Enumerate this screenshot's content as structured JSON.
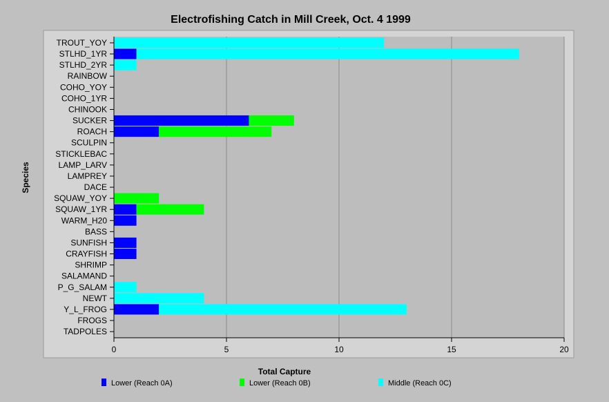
{
  "chart_data": {
    "type": "bar",
    "orientation": "horizontal",
    "stacked": true,
    "title": "Electrofishing Catch in Mill Creek, Oct. 4 1999",
    "xlabel": "Total Capture",
    "ylabel": "Species",
    "xlim": [
      0,
      20
    ],
    "xticks": [
      0,
      5,
      10,
      15,
      20
    ],
    "grid": "vertical",
    "legend_position": "bottom",
    "categories": [
      "TROUT_YOY",
      "STLHD_1YR",
      "STLHD_2YR",
      "RAINBOW",
      "COHO_YOY",
      "COHO_1YR",
      "CHINOOK",
      "SUCKER",
      "ROACH",
      "SCULPIN",
      "STICKLEBAC",
      "LAMP_LARV",
      "LAMPREY",
      "DACE",
      "SQUAW_YOY",
      "SQUAW_1YR",
      "WARM_H20",
      "BASS",
      "SUNFISH",
      "CRAYFISH",
      "SHRIMP",
      "SALAMAND",
      "P_G_SALAM",
      "NEWT",
      "Y_L_FROG",
      "FROGS",
      "TADPOLES"
    ],
    "series": [
      {
        "name": "Lower (Reach 0A)",
        "color": "#0000ff",
        "values": [
          0,
          1,
          0,
          0,
          0,
          0,
          0,
          6,
          2,
          0,
          0,
          0,
          0,
          0,
          0,
          1,
          1,
          0,
          1,
          1,
          0,
          0,
          0,
          0,
          2,
          0,
          0
        ]
      },
      {
        "name": "Lower (Reach 0B)",
        "color": "#00ff00",
        "values": [
          0,
          0,
          0,
          0,
          0,
          0,
          0,
          2,
          5,
          0,
          0,
          0,
          0,
          0,
          2,
          3,
          0,
          0,
          0,
          0,
          0,
          0,
          0,
          0,
          0,
          0,
          0
        ]
      },
      {
        "name": "Middle (Reach 0C)",
        "color": "#00ffff",
        "values": [
          12,
          17,
          1,
          0,
          0,
          0,
          0,
          0,
          0,
          0,
          0,
          0,
          0,
          0,
          0,
          0,
          0,
          0,
          0,
          0,
          0,
          0,
          1,
          4,
          11,
          0,
          0
        ]
      }
    ]
  }
}
